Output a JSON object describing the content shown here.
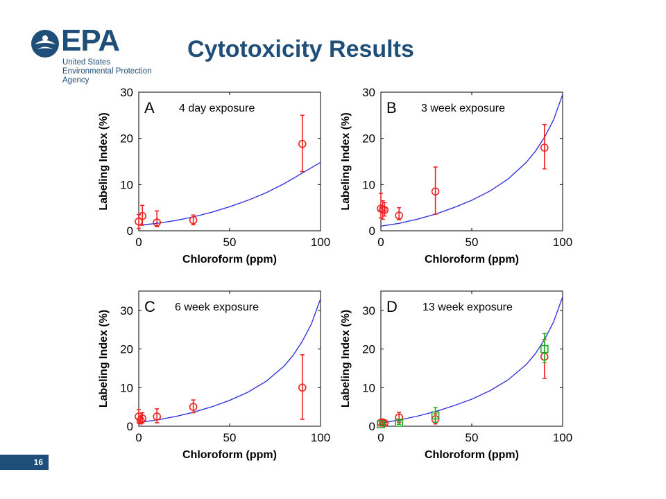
{
  "header": {
    "title": "Cytotoxicity Results",
    "logo": {
      "mark": "EPA",
      "line1": "United States",
      "line2": "Environmental Protection",
      "line3": "Agency"
    }
  },
  "footer": {
    "page_number": "16"
  },
  "colors": {
    "brand": "#1f4e79",
    "fit_line": "#3333dd",
    "data_red": "#ee2222",
    "data_green": "#22aa22"
  },
  "chart_data": [
    {
      "type": "scatter",
      "panel_label": "A",
      "annotation": "4 day exposure",
      "xlabel": "Chloroform (ppm)",
      "ylabel": "Labeling Index (%)",
      "xlim": [
        0,
        100
      ],
      "ylim": [
        0,
        30
      ],
      "xticks": [
        0,
        50,
        100
      ],
      "yticks": [
        0,
        10,
        20,
        30
      ],
      "fit_curve": {
        "name": "",
        "x": [
          0,
          10,
          20,
          30,
          40,
          50,
          60,
          70,
          80,
          90,
          100
        ],
        "y": [
          1.2,
          1.6,
          2.2,
          3.0,
          4.0,
          5.2,
          6.6,
          8.2,
          10.2,
          12.5,
          14.8
        ]
      },
      "series": [
        {
          "marker": "circle",
          "color": "#ee2222",
          "x": [
            0,
            2,
            10,
            30,
            90
          ],
          "y": [
            2,
            3.2,
            1.8,
            2.3,
            18.8
          ],
          "err_low": [
            0.5,
            1.2,
            0.9,
            1.3,
            12.8
          ],
          "err_high": [
            3.5,
            5.5,
            4.3,
            3.4,
            25
          ]
        }
      ]
    },
    {
      "type": "scatter",
      "panel_label": "B",
      "annotation": "3 week exposure",
      "xlabel": "Chloroform (ppm)",
      "ylabel": "Labeling Index (%)",
      "xlim": [
        0,
        100
      ],
      "ylim": [
        0,
        30
      ],
      "xticks": [
        0,
        50,
        100
      ],
      "yticks": [
        0,
        10,
        20,
        30
      ],
      "fit_curve": {
        "name": "",
        "x": [
          0,
          10,
          20,
          30,
          40,
          50,
          60,
          70,
          80,
          85,
          90,
          95,
          100
        ],
        "y": [
          1.0,
          1.6,
          2.5,
          3.6,
          5.0,
          6.6,
          8.6,
          11.2,
          14.8,
          17.2,
          20.2,
          24,
          29.5
        ]
      },
      "series": [
        {
          "marker": "circle",
          "color": "#ee2222",
          "x": [
            0,
            1,
            2,
            10,
            30,
            90
          ],
          "y": [
            4.8,
            4.6,
            4.5,
            3.3,
            8.5,
            18
          ],
          "err_low": [
            2.8,
            2.5,
            3.2,
            2.4,
            3.6,
            13.4
          ],
          "err_high": [
            8.1,
            6.5,
            6.1,
            5.0,
            13.8,
            23
          ]
        }
      ]
    },
    {
      "type": "scatter",
      "panel_label": "C",
      "annotation": "6 week exposure",
      "xlabel": "Chloroform (ppm)",
      "ylabel": "Labeling Index (%)",
      "xlim": [
        0,
        100
      ],
      "ylim": [
        0,
        35
      ],
      "xticks": [
        0,
        50,
        100
      ],
      "yticks": [
        0,
        10,
        20,
        30
      ],
      "fit_curve": {
        "name": "",
        "x": [
          0,
          10,
          20,
          30,
          40,
          50,
          60,
          70,
          80,
          85,
          90,
          95,
          100
        ],
        "y": [
          1.0,
          1.6,
          2.5,
          3.6,
          5.0,
          6.7,
          8.8,
          11.6,
          15.6,
          18.4,
          22,
          26.5,
          33
        ]
      },
      "series": [
        {
          "marker": "circle",
          "color": "#ee2222",
          "x": [
            0,
            1,
            2,
            10,
            30,
            90
          ],
          "y": [
            2.5,
            1.5,
            2.0,
            2.5,
            5.0,
            10
          ],
          "err_low": [
            0.8,
            0.6,
            0.9,
            0.9,
            3.5,
            1.8
          ],
          "err_high": [
            4.3,
            2.5,
            3.5,
            4.5,
            6.8,
            18.5
          ]
        }
      ]
    },
    {
      "type": "scatter",
      "panel_label": "D",
      "annotation": "13 week exposure",
      "xlabel": "Chloroform (ppm)",
      "ylabel": "Labeling Index (%)",
      "xlim": [
        0,
        100
      ],
      "ylim": [
        0,
        35
      ],
      "xticks": [
        0,
        50,
        100
      ],
      "yticks": [
        0,
        10,
        20,
        30
      ],
      "fit_curve": {
        "name": "",
        "x": [
          0,
          10,
          20,
          30,
          40,
          50,
          60,
          70,
          80,
          85,
          90,
          95,
          100
        ],
        "y": [
          0.8,
          1.6,
          2.6,
          3.8,
          5.3,
          7.0,
          9.2,
          12.0,
          16.0,
          18.8,
          22.4,
          27,
          33.5
        ]
      },
      "series": [
        {
          "marker": "circle",
          "color": "#ee2222",
          "x": [
            0,
            1,
            2,
            10,
            30,
            90
          ],
          "y": [
            0.9,
            1.0,
            0.8,
            2.3,
            1.8,
            18
          ],
          "err_low": [
            0.3,
            0.4,
            0.3,
            1.0,
            0.6,
            12.4
          ],
          "err_high": [
            1.5,
            1.6,
            1.3,
            3.6,
            3.2,
            22.5
          ]
        },
        {
          "marker": "square",
          "color": "#22aa22",
          "x": [
            0,
            10,
            30,
            90
          ],
          "y": [
            0.5,
            0.9,
            2.8,
            20
          ],
          "err_low": [
            0.2,
            0.5,
            1.0,
            16.5
          ],
          "err_high": [
            0.8,
            1.4,
            4.8,
            24
          ]
        }
      ]
    }
  ]
}
